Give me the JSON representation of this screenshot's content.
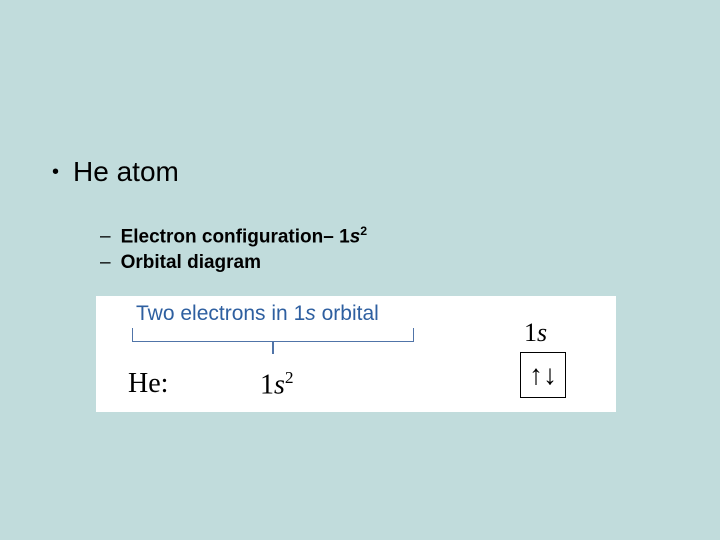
{
  "main": {
    "bullet_text": "He atom"
  },
  "sub": {
    "item1_prefix": "Electron configuration",
    "item1_dash": "–",
    "item1_config_base": "1",
    "item1_config_letter": "s",
    "item1_config_exp": "2",
    "item2_text": "Orbital diagram"
  },
  "diagram": {
    "callout_prefix": "Two electrons in 1",
    "callout_letter": "s",
    "callout_suffix": " orbital",
    "element_label": "He:",
    "config_base": "1",
    "config_letter": "s",
    "config_exp": "2",
    "orbital_name_base": "1",
    "orbital_name_letter": "s",
    "arrow_up": "↑",
    "arrow_down": "↓",
    "colors": {
      "callout_text": "#2e5fa0",
      "bracket": "#5074a8",
      "box_bg": "#ffffff",
      "page_bg": "#c1dcdc"
    }
  }
}
